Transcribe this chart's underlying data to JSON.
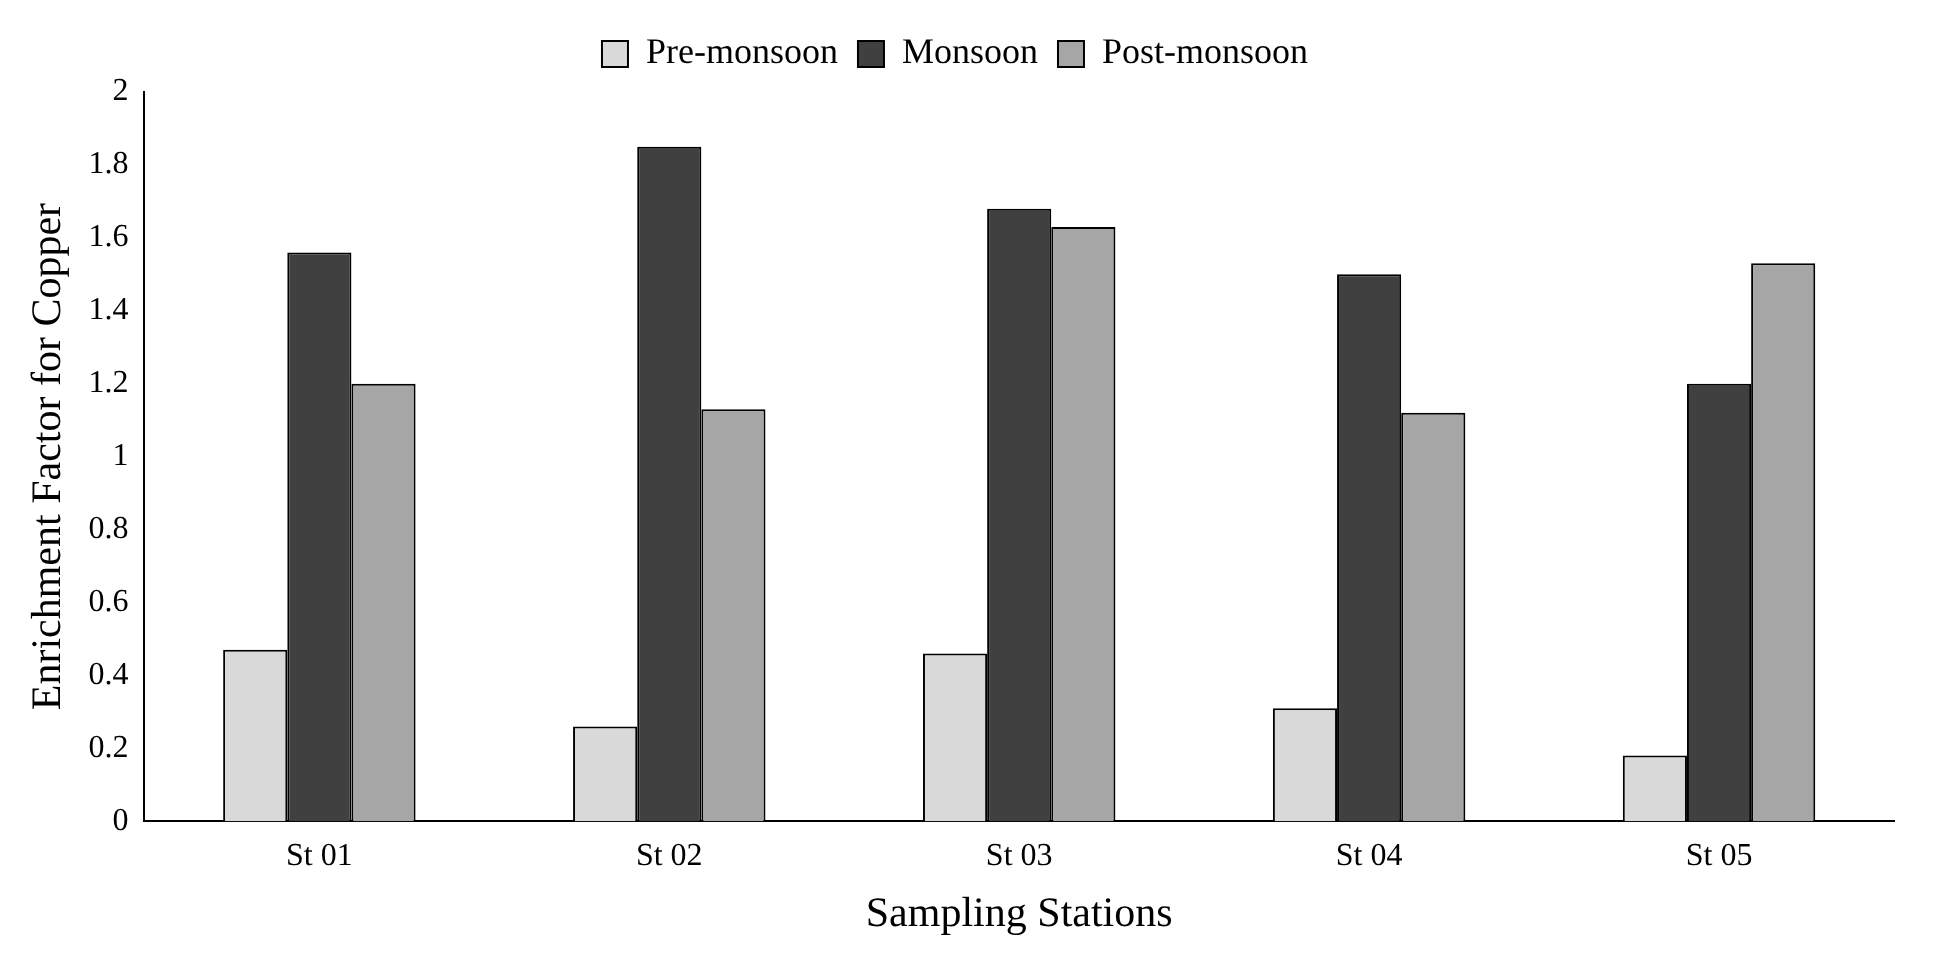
{
  "chart_data": {
    "type": "bar",
    "xlabel": "Sampling Stations",
    "ylabel": "Enrichment Factor for Copper",
    "categories": [
      "St 01",
      "St 02",
      "St 03",
      "St 04",
      "St 05"
    ],
    "series": [
      {
        "name": "Pre-monsoon",
        "color": "#d9d9d9",
        "values": [
          0.47,
          0.26,
          0.46,
          0.31,
          0.18
        ]
      },
      {
        "name": "Monsoon",
        "color": "#404040",
        "values": [
          1.56,
          1.85,
          1.68,
          1.5,
          1.2
        ]
      },
      {
        "name": "Post-monsoon",
        "color": "#a6a6a6",
        "values": [
          1.2,
          1.13,
          1.63,
          1.12,
          1.53
        ]
      }
    ],
    "ylim": [
      0,
      2
    ],
    "yticks": [
      0,
      0.2,
      0.4,
      0.6,
      0.8,
      1,
      1.2,
      1.4,
      1.6,
      1.8,
      2
    ],
    "grid": false,
    "legend": "top"
  }
}
